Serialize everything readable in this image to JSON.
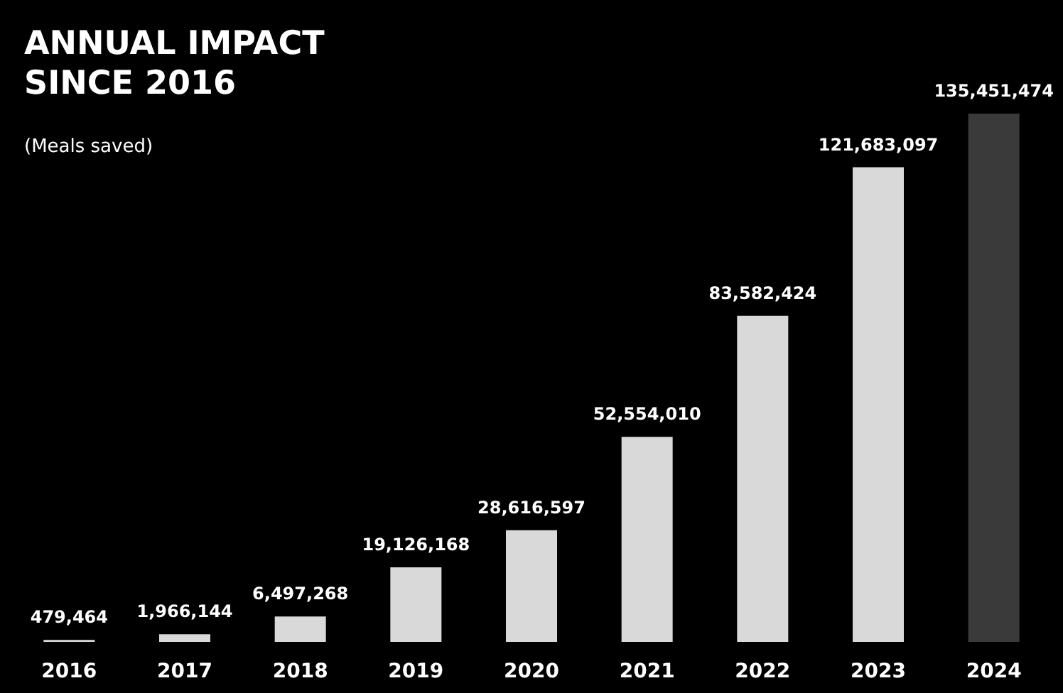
{
  "chart_data": {
    "type": "bar",
    "title": "ANNUAL IMPACT SINCE 2016",
    "subtitle": "(Meals saved)",
    "categories": [
      "2016",
      "2017",
      "2018",
      "2019",
      "2020",
      "2021",
      "2022",
      "2023",
      "2024"
    ],
    "values": [
      479464,
      1966144,
      6497268,
      19126168,
      28616597,
      52554010,
      83582424,
      121683097,
      135451474
    ],
    "value_labels": [
      "479,464",
      "1,966,144",
      "6,497,268",
      "19,126,168",
      "28,616,597",
      "52,554,010",
      "83,582,424",
      "121,683,097",
      "135,451,474"
    ],
    "colors": [
      "#d9d9d9",
      "#d9d9d9",
      "#d9d9d9",
      "#d9d9d9",
      "#d9d9d9",
      "#d9d9d9",
      "#d9d9d9",
      "#d9d9d9",
      "#3a3a3a"
    ]
  }
}
